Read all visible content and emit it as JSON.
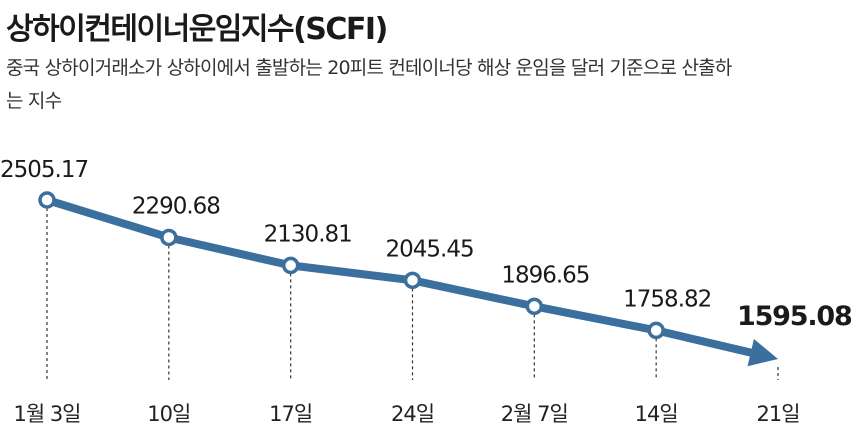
{
  "title": "상하이컨테이너운임지수(SCFI)",
  "subtitle": "중국 상하이거래소가 상하이에서 출발하는 20피트 컨테이너당 해상 운임을 달러 기준으로 산출하는 지수",
  "chart_data": {
    "type": "line",
    "title": "상하이컨테이너운임지수(SCFI)",
    "subtitle": "중국 상하이거래소가 상하이에서 출발하는 20피트 컨테이너당 해상 운임을 달러 기준으로 산출하는 지수",
    "categories": [
      "1월 3일",
      "10일",
      "17일",
      "24일",
      "2월 7일",
      "14일",
      "21일"
    ],
    "values": [
      2505.17,
      2290.68,
      2130.81,
      2045.45,
      1896.65,
      1758.82,
      1595.08
    ],
    "labels": [
      "2505.17",
      "2290.68",
      "2130.81",
      "2045.45",
      "1896.65",
      "1758.82",
      "1595.08"
    ],
    "ylim": [
      1480,
      2600
    ],
    "grid": false,
    "legend": "none",
    "last_point_style": "arrow",
    "colors": {
      "line": "#3a6f9e",
      "marker_fill": "#ffffff",
      "guide": "#333333"
    }
  }
}
